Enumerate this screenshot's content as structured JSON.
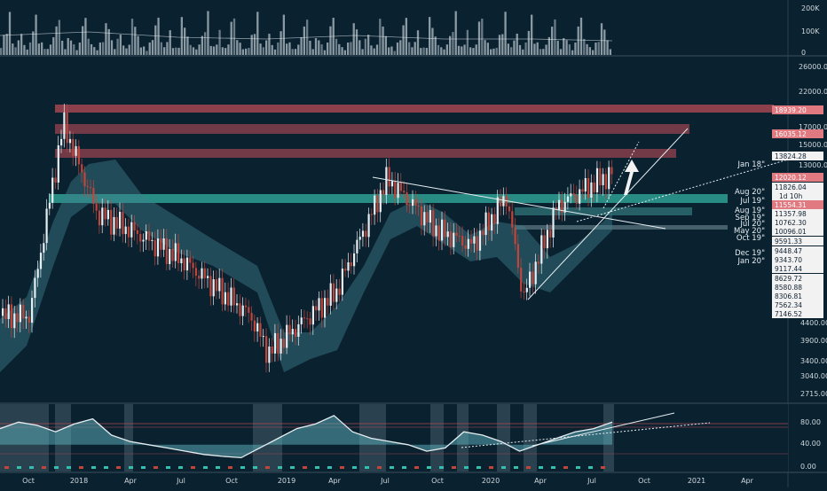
{
  "theme": {
    "background": "#0a2130",
    "separator": "#3a4f5c",
    "text": "#cfd8dc",
    "candle_up": "#e6eef2",
    "candle_down": "#c0453a",
    "teal": "#33c0b0",
    "red_zone": "#b84b55",
    "label_red": "#e07a80",
    "label_white": "#f2f2f2"
  },
  "chart_data": [
    {
      "type": "bar",
      "panel": "volume",
      "y_ticks": [
        "200K",
        "100K",
        "0"
      ],
      "ylim": [
        0,
        230000
      ],
      "bar_count": 210,
      "sample_values": [
        60000,
        95000,
        150000,
        210000,
        70000,
        40000,
        80000,
        120000,
        50000,
        35000,
        60000,
        180000,
        190000,
        90000,
        60000,
        40000,
        30000
      ]
    },
    {
      "type": "line",
      "panel": "price",
      "scale": "log",
      "title": "",
      "ylim": [
        2400,
        27000
      ],
      "y_ticks": [
        "26000.00",
        "22000.00",
        "17000.00",
        "15000.00",
        "13000.00",
        "4400.00",
        "3900.00",
        "3400.00",
        "3040.00",
        "2715.00"
      ],
      "x_ticks": [
        "Oct",
        "2018",
        "Apr",
        "Jul",
        "Oct",
        "2019",
        "Apr",
        "Jul",
        "Oct",
        "2020",
        "Apr",
        "Jul",
        "Oct",
        "2021",
        "Apr"
      ],
      "approx_close_path": [
        {
          "x": "2017-10",
          "y": 4400
        },
        {
          "x": "2017-12",
          "y": 17000
        },
        {
          "x": "2018-02",
          "y": 9000
        },
        {
          "x": "2018-04",
          "y": 8000
        },
        {
          "x": "2018-07",
          "y": 6500
        },
        {
          "x": "2018-11",
          "y": 4400
        },
        {
          "x": "2018-12",
          "y": 3400
        },
        {
          "x": "2019-04",
          "y": 5200
        },
        {
          "x": "2019-07",
          "y": 11500
        },
        {
          "x": "2019-10",
          "y": 8000
        },
        {
          "x": "2019-12",
          "y": 7200
        },
        {
          "x": "2020-02",
          "y": 10200
        },
        {
          "x": "2020-03",
          "y": 5000
        },
        {
          "x": "2020-05",
          "y": 9500
        },
        {
          "x": "2020-07",
          "y": 11000
        },
        {
          "x": "2020-08",
          "y": 11826
        }
      ],
      "zones": [
        {
          "kind": "resistance",
          "label": "18939.20"
        },
        {
          "kind": "resistance",
          "label": "16035.12"
        },
        {
          "kind": "resistance",
          "label": "13824.28"
        },
        {
          "kind": "support",
          "label": "11554.31"
        }
      ],
      "level_labels": [
        {
          "name": "Jan 18\"",
          "value": "13824.28"
        },
        {
          "name": "",
          "value": "12020.12"
        },
        {
          "name": "",
          "value": "11826.04"
        },
        {
          "name": "Aug 20\"",
          "value": ""
        },
        {
          "name": "Jul 19\"",
          "value": "11554.31"
        },
        {
          "name": "",
          "value": "1d 10h"
        },
        {
          "name": "Aug 19\"",
          "value": "11357.98"
        },
        {
          "name": "Sep 19\"",
          "value": ""
        },
        {
          "name": "Jul 20\"",
          "value": "10762.30"
        },
        {
          "name": "May 20\"",
          "value": "10096.01"
        },
        {
          "name": "Oct 19\"",
          "value": "9591.33"
        },
        {
          "name": "Dec 19\"",
          "value": "9448.47"
        },
        {
          "name": "Jan 20\"",
          "value": "9343.70"
        },
        {
          "name": "",
          "value": "9117.44"
        },
        {
          "name": "",
          "value": "8629.72"
        },
        {
          "name": "",
          "value": "8580.88"
        },
        {
          "name": "",
          "value": "8306.81"
        },
        {
          "name": "",
          "value": "7562.34"
        },
        {
          "name": "",
          "value": "7146.52"
        }
      ]
    },
    {
      "type": "line",
      "panel": "oscillator",
      "ylim": [
        0,
        100
      ],
      "y_ticks": [
        "80.00",
        "40.00",
        "0.00"
      ],
      "approx_values": [
        65,
        75,
        70,
        60,
        72,
        80,
        55,
        45,
        40,
        35,
        30,
        25,
        22,
        20,
        35,
        50,
        65,
        72,
        85,
        60,
        50,
        45,
        40,
        30,
        35,
        60,
        55,
        45,
        30,
        40,
        50,
        60,
        65,
        75
      ]
    }
  ]
}
